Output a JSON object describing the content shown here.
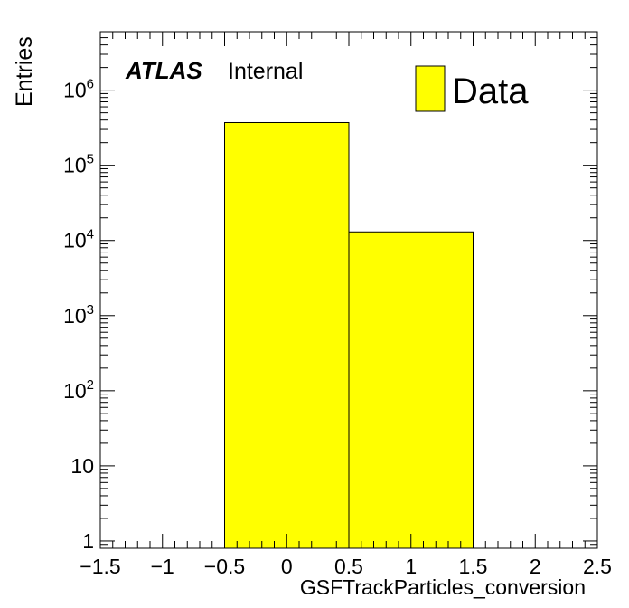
{
  "chart_data": {
    "type": "bar",
    "histogram": true,
    "bins": [
      {
        "low": -0.5,
        "high": 0.5,
        "value": 370000
      },
      {
        "low": 0.5,
        "high": 1.5,
        "value": 13000
      }
    ],
    "xlabel": "GSFTrackParticles_conversion",
    "ylabel": "Entries",
    "xlim": [
      -1.5,
      2.5
    ],
    "ylim": [
      0.8,
      6000000
    ],
    "yscale": "log",
    "x_ticks": [
      {
        "value": -1.5,
        "label": "−1.5"
      },
      {
        "value": -1,
        "label": "−1"
      },
      {
        "value": -0.5,
        "label": "−0.5"
      },
      {
        "value": 0,
        "label": "0"
      },
      {
        "value": 0.5,
        "label": "0.5"
      },
      {
        "value": 1,
        "label": "1"
      },
      {
        "value": 1.5,
        "label": "1.5"
      },
      {
        "value": 2,
        "label": "2"
      },
      {
        "value": 2.5,
        "label": "2.5"
      }
    ],
    "y_ticks": [
      {
        "value": 1,
        "base": "1",
        "exp": ""
      },
      {
        "value": 10,
        "base": "10",
        "exp": ""
      },
      {
        "value": 100,
        "base": "10",
        "exp": "2"
      },
      {
        "value": 1000,
        "base": "10",
        "exp": "3"
      },
      {
        "value": 10000,
        "base": "10",
        "exp": "4"
      },
      {
        "value": 100000,
        "base": "10",
        "exp": "5"
      },
      {
        "value": 1000000,
        "base": "10",
        "exp": "6"
      }
    ],
    "grid": false,
    "legend": {
      "placement": "top-right",
      "entries": [
        {
          "name": "Data",
          "color": "#ffff00"
        }
      ]
    },
    "annotation": {
      "bold": "ATLAS",
      "text": "Internal"
    },
    "fill_color": "#ffff00",
    "edge_color": "#000000"
  }
}
